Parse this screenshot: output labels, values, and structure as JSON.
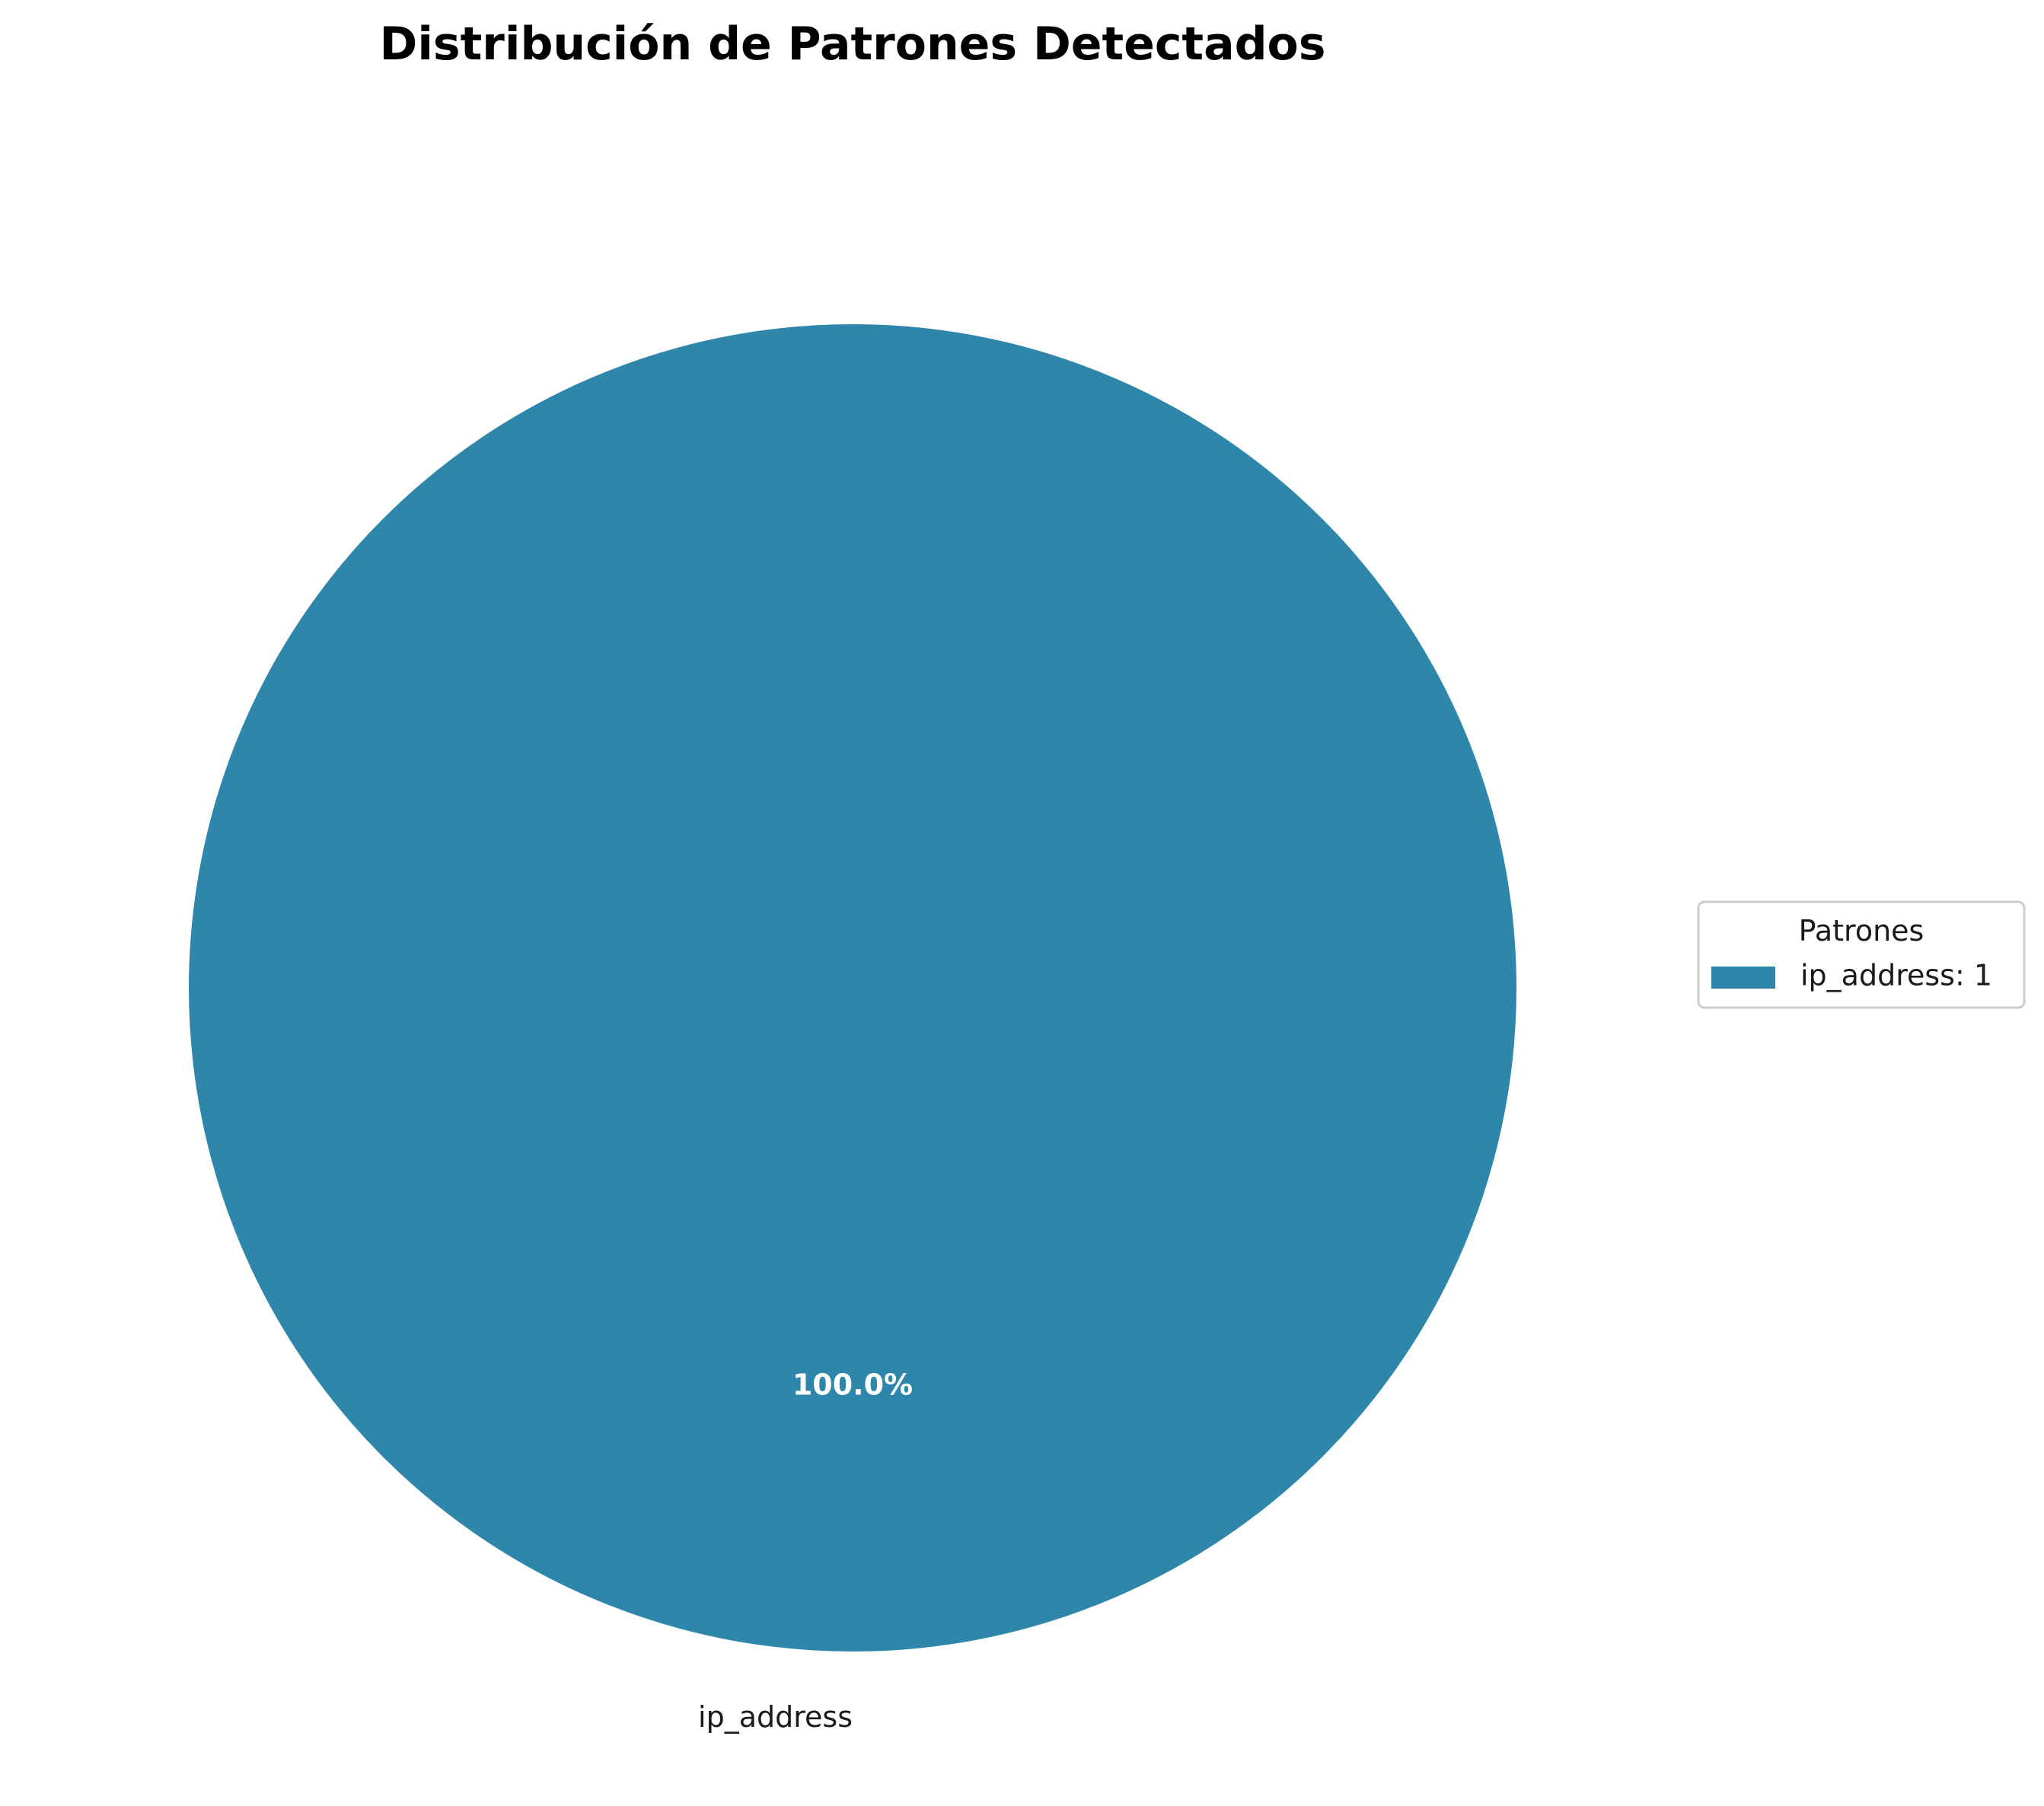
{
  "chart_data": {
    "type": "pie",
    "title": "Distribución de Patrones Detectados",
    "categories": [
      "ip_address"
    ],
    "values": [
      1
    ],
    "percent_labels": [
      "100.0%"
    ],
    "colors": [
      "#2e86ab"
    ],
    "legend": {
      "title": "Patrones",
      "placement": "right",
      "entries": [
        "ip_address: 1"
      ]
    }
  }
}
